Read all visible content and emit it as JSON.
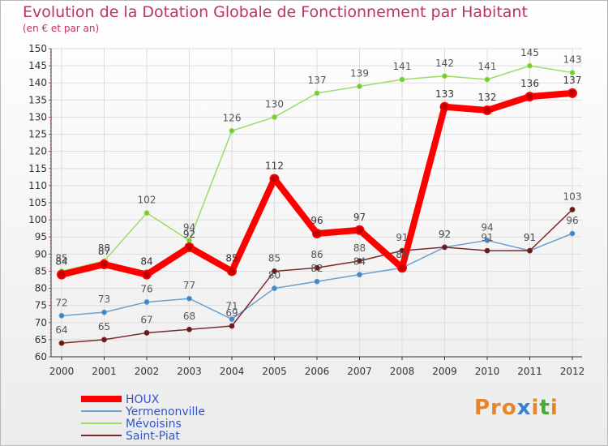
{
  "header": {
    "title": "Evolution de la Dotation Globale de Fonctionnement par Habitant",
    "subtitle": "(en € et par an)"
  },
  "logo": {
    "text": "Proxiti"
  },
  "chart_data": {
    "type": "line",
    "title": "Evolution de la Dotation Globale de Fonctionnement par Habitant",
    "subtitle": "(en € et par an)",
    "xlabel": "",
    "ylabel": "",
    "ylim": [
      60,
      150
    ],
    "yticks": [
      60,
      65,
      70,
      75,
      80,
      85,
      90,
      95,
      100,
      105,
      110,
      115,
      120,
      125,
      130,
      135,
      140,
      145,
      150
    ],
    "categories": [
      "2000",
      "2001",
      "2002",
      "2003",
      "2004",
      "2005",
      "2006",
      "2007",
      "2008",
      "2009",
      "2010",
      "2011",
      "2012"
    ],
    "legend_position": "bottom-left",
    "grid": true,
    "series": [
      {
        "name": "HOUX",
        "color": "#ff0000",
        "marker": "#c00000",
        "width": 8,
        "label_color": "#333333",
        "values": [
          84,
          87,
          84,
          92,
          85,
          112,
          96,
          97,
          86,
          133,
          132,
          136,
          137
        ]
      },
      {
        "name": "Yermenonville",
        "color": "#6a9fd0",
        "marker": "#3f86c8",
        "width": 1.5,
        "label_color": "#555555",
        "values": [
          72,
          73,
          76,
          77,
          71,
          80,
          82,
          84,
          86,
          92,
          94,
          91,
          96
        ]
      },
      {
        "name": "Mévoisins",
        "color": "#99dd66",
        "marker": "#77cc33",
        "width": 1.5,
        "label_color": "#555555",
        "values": [
          85,
          88,
          102,
          94,
          126,
          130,
          137,
          139,
          141,
          142,
          141,
          145,
          143
        ]
      },
      {
        "name": "Saint-Piat",
        "color": "#7a2a2a",
        "marker": "#6b1a1a",
        "width": 1.5,
        "label_color": "#555555",
        "values": [
          64,
          65,
          67,
          68,
          69,
          85,
          86,
          88,
          91,
          92,
          91,
          91,
          103
        ]
      }
    ]
  }
}
